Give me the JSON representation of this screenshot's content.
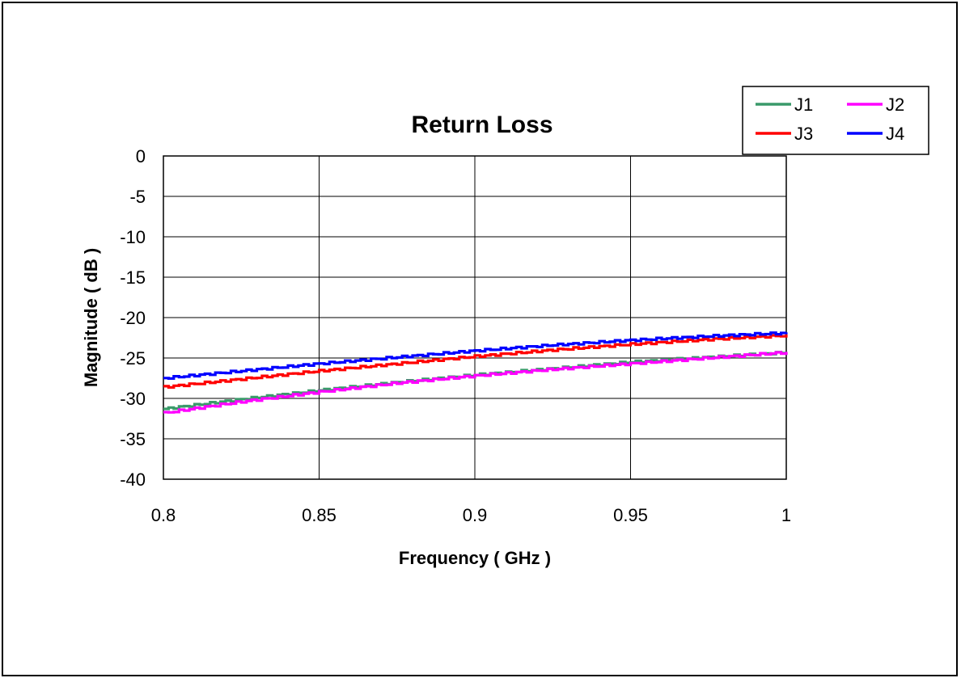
{
  "chart_data": {
    "type": "line",
    "title": "Return Loss",
    "xlabel": "Frequency ( GHz )",
    "ylabel": "Magnitude ( dB )",
    "xlim": [
      0.8,
      1.0
    ],
    "ylim": [
      -40,
      0
    ],
    "xticks": [
      "0.8",
      "0.85",
      "0.9",
      "0.95",
      "1"
    ],
    "xtick_values": [
      0.8,
      0.85,
      0.9,
      0.95,
      1.0
    ],
    "yticks": [
      "0",
      "-5",
      "-10",
      "-15",
      "-20",
      "-25",
      "-30",
      "-35",
      "-40"
    ],
    "ytick_values": [
      0,
      -5,
      -10,
      -15,
      -20,
      -25,
      -30,
      -35,
      -40
    ],
    "grid": true,
    "legend_position": "top-right",
    "series": [
      {
        "name": "J1",
        "color": "#3a9a6a",
        "x": [
          0.8,
          0.825,
          0.85,
          0.875,
          0.9,
          0.925,
          0.95,
          0.975,
          1.0
        ],
        "values": [
          -31.3,
          -30.1,
          -29.0,
          -28.0,
          -27.1,
          -26.3,
          -25.5,
          -24.9,
          -24.3
        ]
      },
      {
        "name": "J2",
        "color": "#ff00ff",
        "x": [
          0.8,
          0.825,
          0.85,
          0.875,
          0.9,
          0.925,
          0.95,
          0.975,
          1.0
        ],
        "values": [
          -31.8,
          -30.4,
          -29.2,
          -28.1,
          -27.2,
          -26.4,
          -25.7,
          -25.0,
          -24.3
        ]
      },
      {
        "name": "J3",
        "color": "#ff0000",
        "x": [
          0.8,
          0.825,
          0.85,
          0.875,
          0.9,
          0.925,
          0.95,
          0.975,
          1.0
        ],
        "values": [
          -28.6,
          -27.6,
          -26.6,
          -25.7,
          -24.8,
          -24.0,
          -23.3,
          -22.7,
          -22.2
        ]
      },
      {
        "name": "J4",
        "color": "#0000ff",
        "x": [
          0.8,
          0.825,
          0.85,
          0.875,
          0.9,
          0.925,
          0.95,
          0.975,
          1.0
        ],
        "values": [
          -27.5,
          -26.6,
          -25.7,
          -24.9,
          -24.1,
          -23.4,
          -22.8,
          -22.3,
          -21.9
        ]
      }
    ]
  }
}
